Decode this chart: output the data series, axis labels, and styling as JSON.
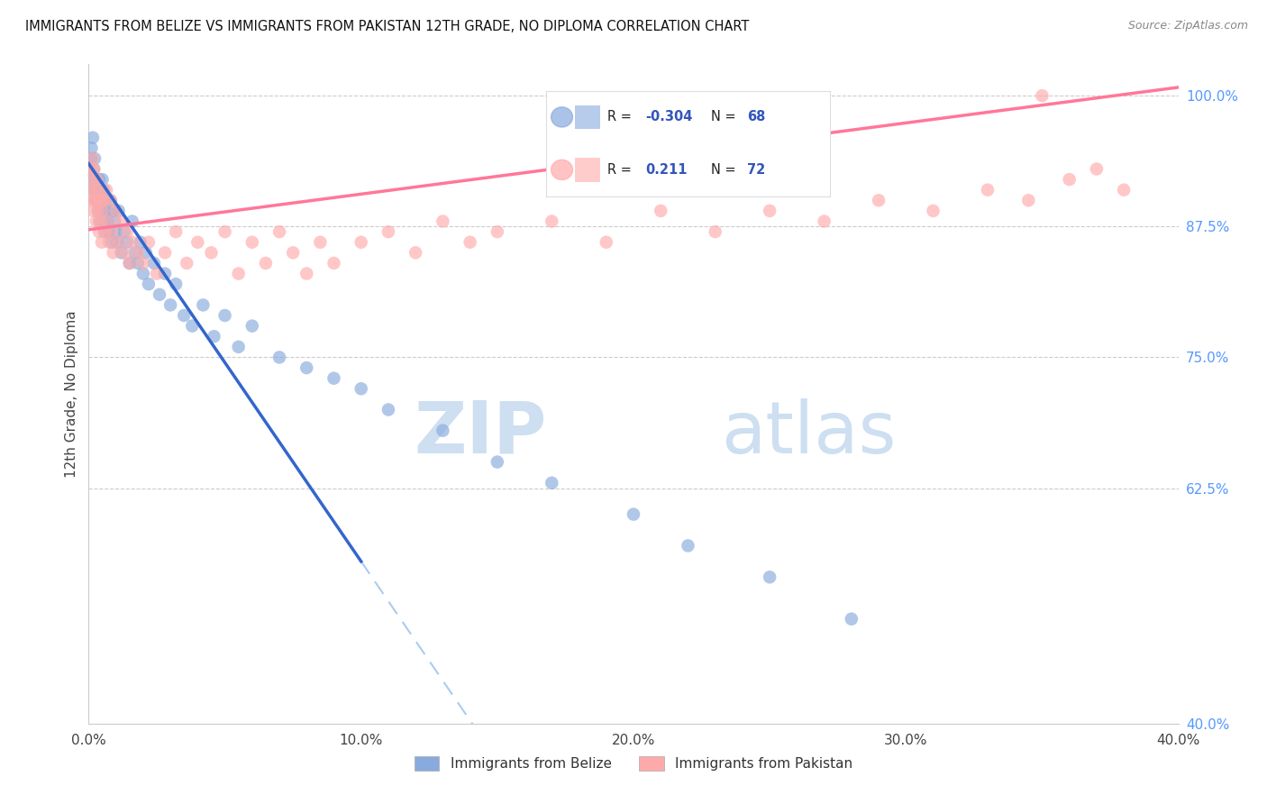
{
  "title": "IMMIGRANTS FROM BELIZE VS IMMIGRANTS FROM PAKISTAN 12TH GRADE, NO DIPLOMA CORRELATION CHART",
  "source": "Source: ZipAtlas.com",
  "ylabel_left": "12th Grade, No Diploma",
  "xmin": 0.0,
  "xmax": 40.0,
  "ymin": 40.0,
  "ymax": 103.0,
  "ytick_positions": [
    100.0,
    87.5,
    75.0,
    62.5,
    40.0
  ],
  "ytick_labels": [
    "100.0%",
    "87.5%",
    "75.0%",
    "62.5%",
    "40.0%"
  ],
  "xtick_positions": [
    0,
    10,
    20,
    30,
    40
  ],
  "xtick_labels": [
    "0.0%",
    "10.0%",
    "20.0%",
    "30.0%",
    "40.0%"
  ],
  "belize_R": -0.304,
  "belize_N": 68,
  "pakistan_R": 0.211,
  "pakistan_N": 72,
  "belize_color": "#88AADD",
  "pakistan_color": "#FFAAAA",
  "belize_line_color": "#3366CC",
  "pakistan_line_color": "#FF7799",
  "dash_color": "#AACCEE",
  "grid_color": "#CCCCCC",
  "title_fontsize": 10.5,
  "source_fontsize": 9,
  "tick_fontsize": 11,
  "ylabel_fontsize": 11,
  "watermark_zip_color": "#CCDDF5",
  "watermark_atlas_color": "#CCDDF5",
  "legend_border_color": "#DDDDDD",
  "legend_text_color": "#222222",
  "legend_value_color": "#3355BB",
  "belize_line_solid_end": 10.0,
  "belize_line_intercept": 93.5,
  "belize_line_slope": -3.8,
  "pakistan_line_intercept": 87.2,
  "pakistan_line_slope": 0.34,
  "belize_scatter_x": [
    0.05,
    0.08,
    0.1,
    0.12,
    0.15,
    0.18,
    0.2,
    0.22,
    0.25,
    0.28,
    0.3,
    0.33,
    0.35,
    0.38,
    0.4,
    0.43,
    0.45,
    0.48,
    0.5,
    0.53,
    0.55,
    0.58,
    0.6,
    0.65,
    0.7,
    0.75,
    0.8,
    0.85,
    0.9,
    0.95,
    1.0,
    1.05,
    1.1,
    1.2,
    1.3,
    1.4,
    1.5,
    1.6,
    1.7,
    1.8,
    1.9,
    2.0,
    2.1,
    2.2,
    2.4,
    2.6,
    2.8,
    3.0,
    3.2,
    3.5,
    3.8,
    4.2,
    4.6,
    5.0,
    5.5,
    6.0,
    7.0,
    8.0,
    9.0,
    10.0,
    11.0,
    13.0,
    15.0,
    17.0,
    20.0,
    22.0,
    25.0,
    28.0
  ],
  "belize_scatter_y": [
    93,
    94,
    95,
    92,
    96,
    93,
    91,
    94,
    90,
    92,
    91,
    90,
    89,
    92,
    88,
    91,
    90,
    89,
    92,
    88,
    91,
    87,
    90,
    89,
    88,
    87,
    90,
    86,
    89,
    88,
    87,
    86,
    89,
    85,
    87,
    86,
    84,
    88,
    85,
    84,
    86,
    83,
    85,
    82,
    84,
    81,
    83,
    80,
    82,
    79,
    78,
    80,
    77,
    79,
    76,
    78,
    75,
    74,
    73,
    72,
    70,
    68,
    65,
    63,
    60,
    57,
    54,
    50
  ],
  "pakistan_scatter_x": [
    0.05,
    0.08,
    0.1,
    0.13,
    0.15,
    0.18,
    0.2,
    0.23,
    0.25,
    0.28,
    0.3,
    0.33,
    0.35,
    0.38,
    0.4,
    0.43,
    0.45,
    0.48,
    0.5,
    0.55,
    0.6,
    0.65,
    0.7,
    0.75,
    0.8,
    0.85,
    0.9,
    1.0,
    1.1,
    1.2,
    1.3,
    1.4,
    1.5,
    1.6,
    1.8,
    2.0,
    2.2,
    2.5,
    2.8,
    3.2,
    3.6,
    4.0,
    4.5,
    5.0,
    5.5,
    6.0,
    6.5,
    7.0,
    7.5,
    8.0,
    8.5,
    9.0,
    10.0,
    11.0,
    12.0,
    13.0,
    14.0,
    15.0,
    17.0,
    19.0,
    21.0,
    23.0,
    25.0,
    27.0,
    29.0,
    31.0,
    33.0,
    34.5,
    36.0,
    37.0,
    38.0,
    35.0
  ],
  "pakistan_scatter_y": [
    91,
    93,
    90,
    94,
    92,
    89,
    93,
    90,
    91,
    88,
    92,
    89,
    90,
    87,
    91,
    88,
    90,
    86,
    89,
    90,
    87,
    91,
    88,
    86,
    90,
    87,
    85,
    89,
    86,
    88,
    85,
    87,
    84,
    86,
    85,
    84,
    86,
    83,
    85,
    87,
    84,
    86,
    85,
    87,
    83,
    86,
    84,
    87,
    85,
    83,
    86,
    84,
    86,
    87,
    85,
    88,
    86,
    87,
    88,
    86,
    89,
    87,
    89,
    88,
    90,
    89,
    91,
    90,
    92,
    93,
    91,
    100
  ]
}
